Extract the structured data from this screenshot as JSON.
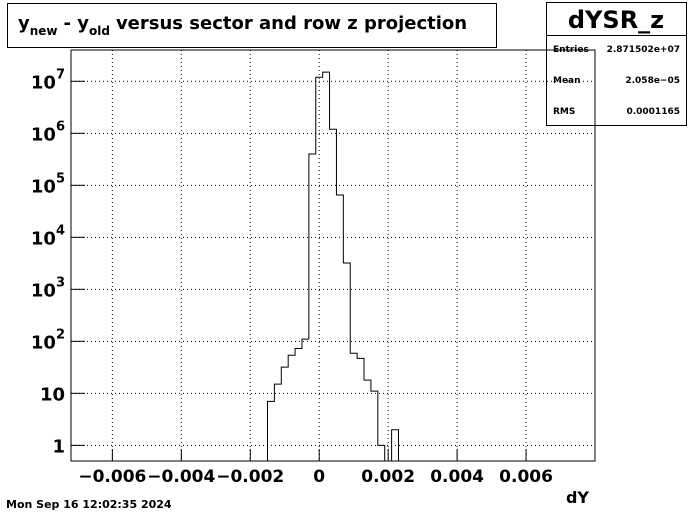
{
  "chart_data": {
    "type": "histogram",
    "title": [
      "y",
      "new",
      "- y",
      "old",
      "versus sector and row  z projection"
    ],
    "stats": {
      "name": "dYSR_z",
      "rows": [
        [
          "Entries",
          "2.871502e+07"
        ],
        [
          "Mean",
          "2.058e−05"
        ],
        [
          "RMS",
          "0.0001165"
        ]
      ]
    },
    "x_label": "dY",
    "timestamp": "Mon Sep 16 12:02:35 2024",
    "bins": [
      -0.0015,
      -0.0013,
      -0.0011,
      -0.0009,
      -0.0007,
      -0.0005,
      -0.0003,
      -0.0001,
      0.0001,
      0.0003,
      0.0005,
      0.0007,
      0.0009,
      0.0011,
      0.0013,
      0.0015,
      0.0017,
      0.0019,
      0.0021,
      0.0023
    ],
    "values": [
      7,
      15,
      32,
      54,
      73,
      110,
      400000,
      12000000,
      15000000,
      1200000,
      65000,
      3200,
      59,
      47,
      18,
      11,
      1,
      0,
      2
    ],
    "color": "#000000",
    "xlim": [
      -0.0072,
      0.008
    ],
    "xticks": [
      {
        "value": -0.006,
        "label": "−0.006"
      },
      {
        "value": -0.004,
        "label": "−0.004"
      },
      {
        "value": -0.002,
        "label": "−0.002"
      },
      0,
      0.002,
      0.004,
      0.006
    ],
    "ylim": [
      0.5,
      40000000
    ],
    "yticks": [
      1,
      10,
      {
        "value": 100,
        "label": "10",
        "exponent": "2"
      },
      {
        "value": 1000,
        "label": "10",
        "exponent": "3"
      },
      {
        "value": 10000,
        "label": "10",
        "exponent": "4"
      },
      {
        "value": 100000,
        "label": "10",
        "exponent": "5"
      },
      {
        "value": 1000000,
        "label": "10",
        "exponent": "6"
      },
      {
        "value": 10000000,
        "label": "10",
        "exponent": "7"
      }
    ],
    "log_y": true,
    "grid": true
  }
}
